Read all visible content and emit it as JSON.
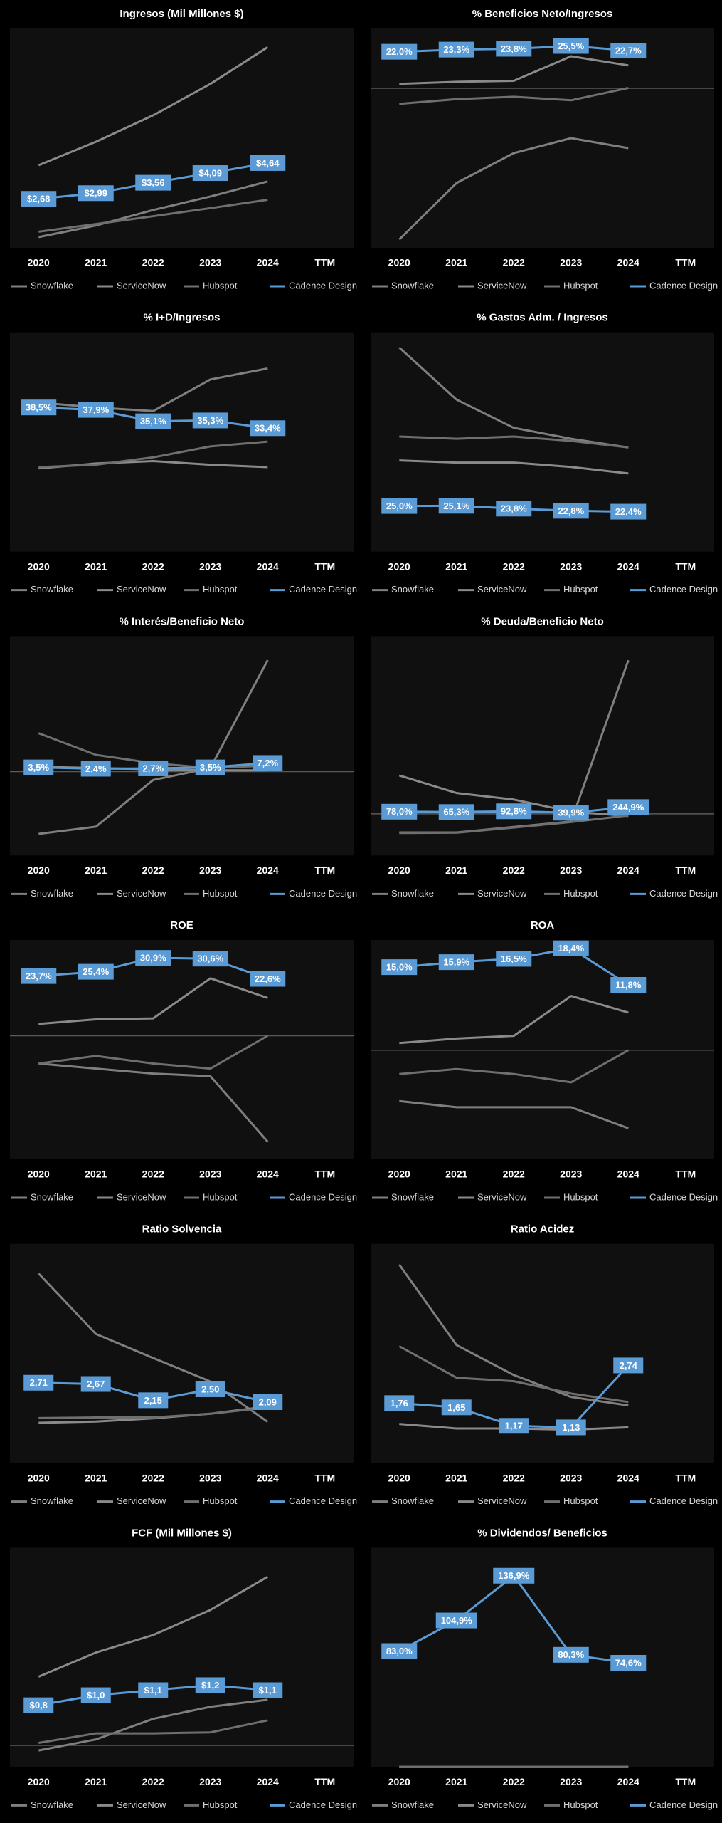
{
  "chart_data": [
    {
      "type": "line",
      "title": "Ingresos (Mil Millones $)",
      "categories": [
        "2020",
        "2021",
        "2022",
        "2023",
        "2024",
        "TTM"
      ],
      "ylim": [
        0,
        12
      ],
      "legend": "bottom",
      "series": [
        {
          "name": "Snowflake",
          "color": "#7f7f7f",
          "values": [
            0.59,
            1.22,
            2.07,
            2.81,
            3.63,
            null
          ]
        },
        {
          "name": "ServiceNow",
          "color": "#8a8a8a",
          "values": [
            4.52,
            5.8,
            7.25,
            8.97,
            10.98,
            null
          ]
        },
        {
          "name": "Hubspot",
          "color": "#6f6f6f",
          "values": [
            0.88,
            1.3,
            1.73,
            2.17,
            2.63,
            null
          ]
        },
        {
          "name": "Cadence Design",
          "color": "#5b9bd5",
          "values": [
            2.68,
            2.99,
            3.56,
            4.09,
            4.64,
            null
          ],
          "value_labels": [
            "$2,68",
            "$2,99",
            "$3,56",
            "$4,09",
            "$4,64",
            null
          ]
        }
      ]
    },
    {
      "type": "line",
      "title": "% Beneficios Neto/Ingresos",
      "categories": [
        "2020",
        "2021",
        "2022",
        "2023",
        "2024",
        "TTM"
      ],
      "ylim": [
        -96,
        36
      ],
      "legend": "bottom",
      "series": [
        {
          "name": "Snowflake",
          "color": "#7f7f7f",
          "values": [
            -91,
            -57,
            -39,
            -30,
            -36,
            null
          ]
        },
        {
          "name": "ServiceNow",
          "color": "#8a8a8a",
          "values": [
            2.7,
            3.9,
            4.5,
            19.3,
            13.8,
            null
          ]
        },
        {
          "name": "Hubspot",
          "color": "#6f6f6f",
          "values": [
            -9.4,
            -6.5,
            -5.1,
            -7.2,
            0.2,
            null
          ]
        },
        {
          "name": "Cadence Design",
          "color": "#5b9bd5",
          "values": [
            22.0,
            23.3,
            23.8,
            25.5,
            22.7,
            null
          ],
          "value_labels": [
            "22,0%",
            "23,3%",
            "23,8%",
            "25,5%",
            "22,7%",
            null
          ]
        }
      ]
    },
    {
      "type": "line",
      "title": "% I+D/Ingresos",
      "categories": [
        "2020",
        "2021",
        "2022",
        "2023",
        "2024",
        "TTM"
      ],
      "ylim": [
        3,
        57
      ],
      "legend": "bottom",
      "series": [
        {
          "name": "Snowflake",
          "color": "#7f7f7f",
          "values": [
            39.7,
            38.5,
            37.6,
            45.4,
            48.1,
            null
          ]
        },
        {
          "name": "ServiceNow",
          "color": "#8a8a8a",
          "values": [
            23.5,
            24.7,
            25.3,
            24.4,
            23.8,
            null
          ]
        },
        {
          "name": "Hubspot",
          "color": "#6f6f6f",
          "values": [
            23.8,
            24.4,
            26.2,
            28.9,
            30.1,
            null
          ]
        },
        {
          "name": "Cadence Design",
          "color": "#5b9bd5",
          "values": [
            38.5,
            37.9,
            35.1,
            35.3,
            33.4,
            null
          ],
          "value_labels": [
            "38,5%",
            "37,9%",
            "35,1%",
            "35,3%",
            "33,4%",
            null
          ]
        }
      ]
    },
    {
      "type": "line",
      "title": "% Gastos Adm. / Ingresos",
      "categories": [
        "2020",
        "2021",
        "2022",
        "2023",
        "2024",
        "TTM"
      ],
      "ylim": [
        4,
        105
      ],
      "legend": "bottom",
      "series": [
        {
          "name": "Snowflake",
          "color": "#7f7f7f",
          "values": [
            98,
            74,
            61,
            56,
            52,
            null
          ]
        },
        {
          "name": "ServiceNow",
          "color": "#8a8a8a",
          "values": [
            46,
            45,
            45,
            43,
            40,
            null
          ]
        },
        {
          "name": "Hubspot",
          "color": "#6f6f6f",
          "values": [
            57,
            56,
            57,
            55,
            52,
            null
          ]
        },
        {
          "name": "Cadence Design",
          "color": "#5b9bd5",
          "values": [
            25.0,
            25.1,
            23.8,
            22.8,
            22.4,
            null
          ],
          "value_labels": [
            "25,0%",
            "25,1%",
            "23,8%",
            "22,8%",
            "22,4%",
            null
          ]
        }
      ]
    },
    {
      "type": "line",
      "title": "% Interés/Beneficio Neto",
      "categories": [
        "2020",
        "2021",
        "2022",
        "2023",
        "2024",
        "TTM"
      ],
      "ylim": [
        -70,
        113
      ],
      "legend": "bottom",
      "series": [
        {
          "name": "Snowflake",
          "color": "#7f7f7f",
          "values": [
            -52,
            -46,
            -7,
            3,
            93,
            null
          ]
        },
        {
          "name": "ServiceNow",
          "color": "#8a8a8a",
          "values": [
            4,
            3,
            2,
            1,
            1,
            null
          ]
        },
        {
          "name": "Hubspot",
          "color": "#6f6f6f",
          "values": [
            32,
            14,
            7,
            3,
            5,
            null
          ]
        },
        {
          "name": "Cadence Design",
          "color": "#5b9bd5",
          "values": [
            3.5,
            2.4,
            2.7,
            3.5,
            7.2,
            null
          ],
          "value_labels": [
            "3,5%",
            "2,4%",
            "2,7%",
            "3,5%",
            "7,2%",
            null
          ]
        }
      ]
    },
    {
      "type": "line",
      "title": "% Deuda/Beneficio Neto",
      "categories": [
        "2020",
        "2021",
        "2022",
        "2023",
        "2024",
        "TTM"
      ],
      "ylim": [
        -1520,
        6480
      ],
      "legend": "bottom",
      "series": [
        {
          "name": "Snowflake",
          "color": "#7f7f7f",
          "values": [
            -680,
            -680,
            -480,
            -280,
            5600,
            null
          ]
        },
        {
          "name": "ServiceNow",
          "color": "#8a8a8a",
          "values": [
            1400,
            760,
            520,
            80,
            -80,
            null
          ]
        },
        {
          "name": "Hubspot",
          "color": "#6f6f6f",
          "values": [
            -700,
            -690,
            -500,
            -300,
            -60,
            null
          ]
        },
        {
          "name": "Cadence Design",
          "color": "#5b9bd5",
          "values": [
            78.0,
            65.3,
            92.8,
            39.9,
            244.9,
            null
          ],
          "value_labels": [
            "78,0%",
            "65,3%",
            "92,8%",
            "39,9%",
            "244,9%",
            null
          ]
        }
      ]
    },
    {
      "type": "line",
      "title": "ROE",
      "categories": [
        "2020",
        "2021",
        "2022",
        "2023",
        "2024",
        "TTM"
      ],
      "ylim": [
        -49,
        38
      ],
      "legend": "bottom",
      "series": [
        {
          "name": "Snowflake",
          "color": "#7f7f7f",
          "values": [
            -11,
            -13,
            -15,
            -16,
            -42,
            null
          ]
        },
        {
          "name": "ServiceNow",
          "color": "#8a8a8a",
          "values": [
            4.7,
            6.5,
            6.9,
            22.8,
            15,
            null
          ]
        },
        {
          "name": "Hubspot",
          "color": "#6f6f6f",
          "values": [
            -11,
            -8,
            -11,
            -13,
            0,
            null
          ]
        },
        {
          "name": "Cadence Design",
          "color": "#5b9bd5",
          "values": [
            23.7,
            25.4,
            30.9,
            30.6,
            22.6,
            null
          ],
          "value_labels": [
            "23,7%",
            "25,4%",
            "30,9%",
            "30,6%",
            "22,6%",
            null
          ]
        }
      ]
    },
    {
      "type": "line",
      "title": "ROA",
      "categories": [
        "2020",
        "2021",
        "2022",
        "2023",
        "2024",
        "TTM"
      ],
      "ylim": [
        -19.7,
        19.9
      ],
      "legend": "bottom",
      "series": [
        {
          "name": "Snowflake",
          "color": "#7f7f7f",
          "values": [
            -9.2,
            -10.3,
            -10.3,
            -10.3,
            -14.1,
            null
          ]
        },
        {
          "name": "ServiceNow",
          "color": "#8a8a8a",
          "values": [
            1.3,
            2.1,
            2.6,
            9.8,
            6.8,
            null
          ]
        },
        {
          "name": "Hubspot",
          "color": "#6f6f6f",
          "values": [
            -4.3,
            -3.4,
            -4.3,
            -5.8,
            0,
            null
          ]
        },
        {
          "name": "Cadence Design",
          "color": "#5b9bd5",
          "values": [
            15.0,
            15.9,
            16.5,
            18.4,
            11.8,
            null
          ],
          "value_labels": [
            "15,0%",
            "15,9%",
            "16,5%",
            "18,4%",
            "11,8%",
            null
          ]
        }
      ]
    },
    {
      "type": "line",
      "title": "Ratio Solvencia",
      "categories": [
        "2020",
        "2021",
        "2022",
        "2023",
        "2024",
        "TTM"
      ],
      "ylim": [
        0.14,
        7.15
      ],
      "legend": "bottom",
      "series": [
        {
          "name": "Snowflake",
          "color": "#7f7f7f",
          "values": [
            6.2,
            4.27,
            3.5,
            2.75,
            1.46,
            null
          ]
        },
        {
          "name": "ServiceNow",
          "color": "#8a8a8a",
          "values": [
            1.43,
            1.47,
            1.57,
            1.72,
            1.95,
            null
          ]
        },
        {
          "name": "Hubspot",
          "color": "#6f6f6f",
          "values": [
            1.58,
            1.6,
            1.6,
            1.72,
            1.92,
            null
          ]
        },
        {
          "name": "Cadence Design",
          "color": "#5b9bd5",
          "values": [
            2.71,
            2.67,
            2.15,
            2.5,
            2.09,
            null
          ],
          "value_labels": [
            "2,71",
            "2,67",
            "2,15",
            "2,50",
            "2,09",
            null
          ]
        }
      ]
    },
    {
      "type": "line",
      "title": "Ratio Acidez",
      "categories": [
        "2020",
        "2021",
        "2022",
        "2023",
        "2024",
        "TTM"
      ],
      "ylim": [
        0.2,
        5.9
      ],
      "legend": "bottom",
      "series": [
        {
          "name": "Snowflake",
          "color": "#7f7f7f",
          "values": [
            5.36,
            3.27,
            2.49,
            1.92,
            1.7,
            null
          ]
        },
        {
          "name": "ServiceNow",
          "color": "#8a8a8a",
          "values": [
            1.22,
            1.1,
            1.1,
            1.07,
            1.13,
            null
          ]
        },
        {
          "name": "Hubspot",
          "color": "#6f6f6f",
          "values": [
            3.24,
            2.42,
            2.33,
            2.01,
            1.79,
            null
          ]
        },
        {
          "name": "Cadence Design",
          "color": "#5b9bd5",
          "values": [
            1.76,
            1.65,
            1.17,
            1.13,
            2.74,
            null
          ],
          "value_labels": [
            "1,76",
            "1,65",
            "1,17",
            "1,13",
            "2,74",
            null
          ]
        }
      ]
    },
    {
      "type": "line",
      "title": "FCF (Mil Millones $)",
      "categories": [
        "2020",
        "2021",
        "2022",
        "2023",
        "2024",
        "TTM"
      ],
      "ylim": [
        -0.43,
        3.94
      ],
      "legend": "bottom",
      "series": [
        {
          "name": "Snowflake",
          "color": "#7f7f7f",
          "values": [
            -0.1,
            0.12,
            0.53,
            0.77,
            0.91,
            null
          ]
        },
        {
          "name": "ServiceNow",
          "color": "#8a8a8a",
          "values": [
            1.37,
            1.85,
            2.2,
            2.7,
            3.36,
            null
          ]
        },
        {
          "name": "Hubspot",
          "color": "#6f6f6f",
          "values": [
            0.05,
            0.24,
            0.24,
            0.26,
            0.5,
            null
          ]
        },
        {
          "name": "Cadence Design",
          "color": "#5b9bd5",
          "values": [
            0.8,
            1.0,
            1.1,
            1.2,
            1.1,
            null
          ],
          "value_labels": [
            "$0,8",
            "$1,0",
            "$1,1",
            "$1,2",
            "$1,1",
            null
          ]
        }
      ]
    },
    {
      "type": "line",
      "title": "% Dividendos/ Beneficios",
      "categories": [
        "2020",
        "2021",
        "2022",
        "2023",
        "2024",
        "TTM"
      ],
      "ylim": [
        0,
        157
      ],
      "legend": "bottom",
      "series": [
        {
          "name": "Snowflake",
          "color": "#7f7f7f",
          "values": [
            0,
            0,
            0,
            0,
            0,
            null
          ]
        },
        {
          "name": "ServiceNow",
          "color": "#8a8a8a",
          "values": [
            0,
            0,
            0,
            0,
            0,
            null
          ]
        },
        {
          "name": "Hubspot",
          "color": "#6f6f6f",
          "values": [
            0,
            0,
            0,
            0,
            0,
            null
          ]
        },
        {
          "name": "Cadence Design",
          "color": "#5b9bd5",
          "values": [
            83.0,
            104.9,
            136.9,
            80.3,
            74.6,
            null
          ],
          "value_labels": [
            "83,0%",
            "104,9%",
            "136,9%",
            "80,3%",
            "74,6%",
            null
          ]
        }
      ]
    }
  ]
}
